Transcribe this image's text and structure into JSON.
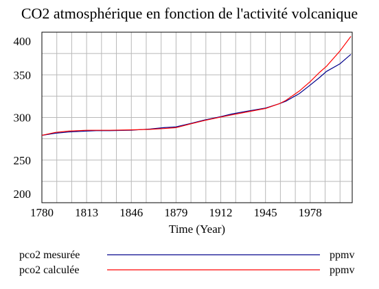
{
  "chart_data": {
    "type": "line",
    "title": "CO2 atmosphérique en fonction de l'activité volcanique",
    "xlabel": "Time (Year)",
    "ylabel": "",
    "xlim": [
      1780,
      2009
    ],
    "ylim": [
      200,
      400
    ],
    "x_ticks": [
      1780,
      1813,
      1846,
      1879,
      1912,
      1945,
      1978
    ],
    "y_ticks": [
      200,
      250,
      300,
      350,
      400
    ],
    "grid": true,
    "legend_position": "bottom",
    "series": [
      {
        "name": "pco2 mesurée",
        "unit": "ppmv",
        "color": "#00008b",
        "x": [
          1780,
          1790,
          1800,
          1813,
          1820,
          1830,
          1846,
          1860,
          1870,
          1879,
          1890,
          1900,
          1912,
          1920,
          1930,
          1945,
          1955,
          1960,
          1970,
          1978,
          1985,
          1990,
          2000,
          2008
        ],
        "values": [
          279,
          281.5,
          283,
          284,
          284.5,
          284.5,
          285,
          286.5,
          288,
          289,
          293,
          297,
          301,
          304,
          307,
          311,
          316,
          319,
          328,
          338,
          347,
          354,
          363,
          374
        ]
      },
      {
        "name": "pco2 calculée",
        "unit": "ppmv",
        "color": "#ff0000",
        "x": [
          1780,
          1790,
          1800,
          1813,
          1820,
          1830,
          1846,
          1860,
          1870,
          1879,
          1890,
          1900,
          1912,
          1920,
          1930,
          1945,
          1955,
          1960,
          1970,
          1978,
          1985,
          1990,
          2000,
          2008
        ],
        "values": [
          279,
          282.5,
          284,
          285,
          285,
          285,
          285.5,
          286,
          287,
          288,
          292.5,
          296.5,
          300.5,
          303,
          306,
          310.5,
          316,
          320,
          331,
          342,
          353,
          360,
          378,
          395
        ]
      }
    ]
  }
}
